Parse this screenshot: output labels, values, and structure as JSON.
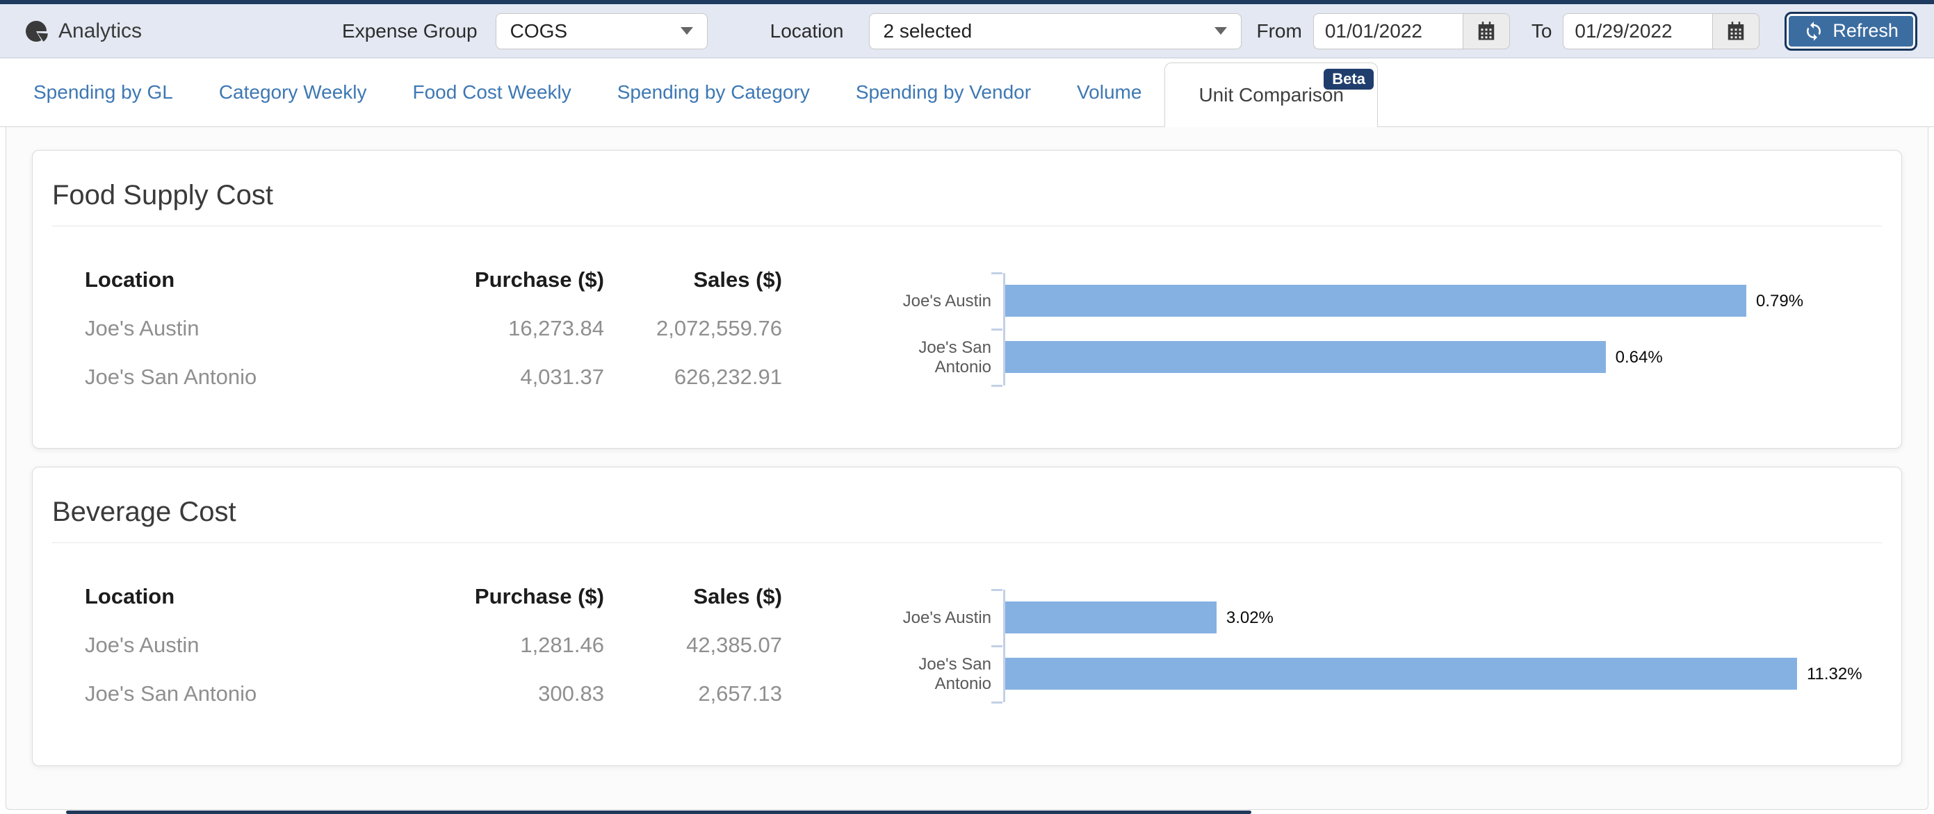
{
  "window": {
    "frame_color": "#1e3a5e"
  },
  "header": {
    "bg": "#e3e8f2",
    "app_title": "Analytics",
    "app_icon": "pie-chart-icon",
    "expense_group": {
      "label": "Expense Group",
      "value": "COGS"
    },
    "location": {
      "label": "Location",
      "value": "2 selected"
    },
    "date_from": {
      "label": "From",
      "value": "01/01/2022",
      "icon": "calendar-icon"
    },
    "date_to": {
      "label": "To",
      "value": "01/29/2022",
      "icon": "calendar-icon"
    },
    "refresh": {
      "label": "Refresh",
      "icon": "refresh-icon",
      "bg": "#3c6da1"
    }
  },
  "tabs": [
    {
      "label": "Spending by GL",
      "active": false
    },
    {
      "label": "Category Weekly",
      "active": false
    },
    {
      "label": "Food Cost Weekly",
      "active": false
    },
    {
      "label": "Spending by Category",
      "active": false
    },
    {
      "label": "Spending by Vendor",
      "active": false
    },
    {
      "label": "Volume",
      "active": false
    },
    {
      "label": "Unit Comparison",
      "active": true,
      "badge": "Beta"
    }
  ],
  "colors": {
    "tab_link": "#3e78b3",
    "tab_active_text": "#3f3f3f",
    "badge_bg": "#1f3e6d",
    "bar": "#85b1e2",
    "axis": "#c3d1e6"
  },
  "cards": [
    {
      "title": "Food Supply Cost",
      "table": {
        "headers": [
          "Location",
          "Purchase ($)",
          "Sales ($)"
        ],
        "rows": [
          [
            "Joe's Austin",
            "16,273.84",
            "2,072,559.76"
          ],
          [
            "Joe's San Antonio",
            "4,031.37",
            "626,232.91"
          ]
        ]
      },
      "chart_index": 0
    },
    {
      "title": "Beverage Cost",
      "table": {
        "headers": [
          "Location",
          "Purchase ($)",
          "Sales ($)"
        ],
        "rows": [
          [
            "Joe's Austin",
            "1,281.46",
            "42,385.07"
          ],
          [
            "Joe's San Antonio",
            "300.83",
            "2,657.13"
          ]
        ]
      },
      "chart_index": 1
    }
  ],
  "chart_data": [
    {
      "type": "bar",
      "orientation": "horizontal",
      "title": "Food Supply Cost",
      "categories": [
        "Joe's Austin",
        "Joe's San Antonio"
      ],
      "values": [
        0.79,
        0.64
      ],
      "value_labels": [
        "0.79%",
        "0.64%"
      ],
      "unit": "%",
      "axis_max": 0.85,
      "grid": false,
      "legend": false,
      "bar_color": "#85b1e2"
    },
    {
      "type": "bar",
      "orientation": "horizontal",
      "title": "Beverage Cost",
      "categories": [
        "Joe's Austin",
        "Joe's San Antonio"
      ],
      "values": [
        3.02,
        11.32
      ],
      "value_labels": [
        "3.02%",
        "11.32%"
      ],
      "unit": "%",
      "axis_max": 11.4,
      "grid": false,
      "legend": false,
      "bar_color": "#85b1e2"
    }
  ]
}
